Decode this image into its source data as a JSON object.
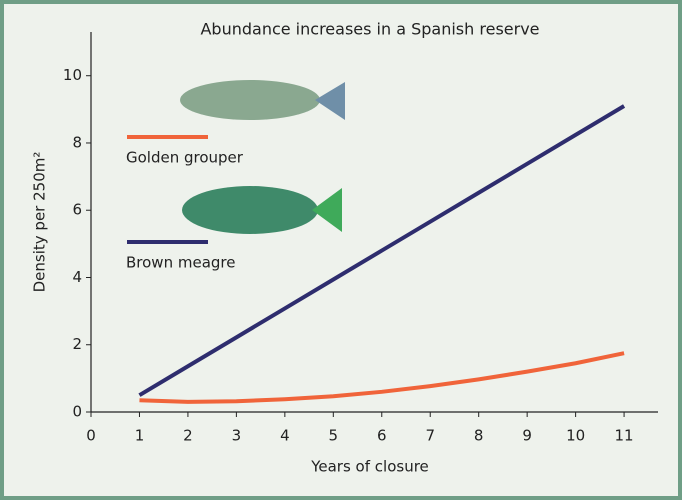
{
  "chart_data": {
    "type": "line",
    "title": "Abundance increases in a Spanish reserve",
    "x_label": "Years of closure",
    "y_label": "Density per 250m²",
    "x": [
      1,
      2,
      3,
      4,
      5,
      6,
      7,
      8,
      9,
      10,
      11
    ],
    "series": [
      {
        "name": "Golden grouper",
        "color": "#f0643a",
        "values": [
          0.35,
          0.3,
          0.32,
          0.38,
          0.47,
          0.6,
          0.77,
          0.97,
          1.2,
          1.45,
          1.75
        ]
      },
      {
        "name": "Brown meagre",
        "color": "#2e2d6e",
        "values": [
          0.5,
          1.36,
          2.22,
          3.08,
          3.94,
          4.8,
          5.66,
          6.52,
          7.38,
          8.24,
          9.1
        ]
      }
    ],
    "xlim": [
      0,
      11.7
    ],
    "ylim": [
      0,
      11.3
    ],
    "xticks": [
      0,
      1,
      2,
      3,
      4,
      5,
      6,
      7,
      8,
      9,
      10,
      11
    ],
    "yticks": [
      0,
      2,
      4,
      6,
      8,
      10
    ]
  }
}
